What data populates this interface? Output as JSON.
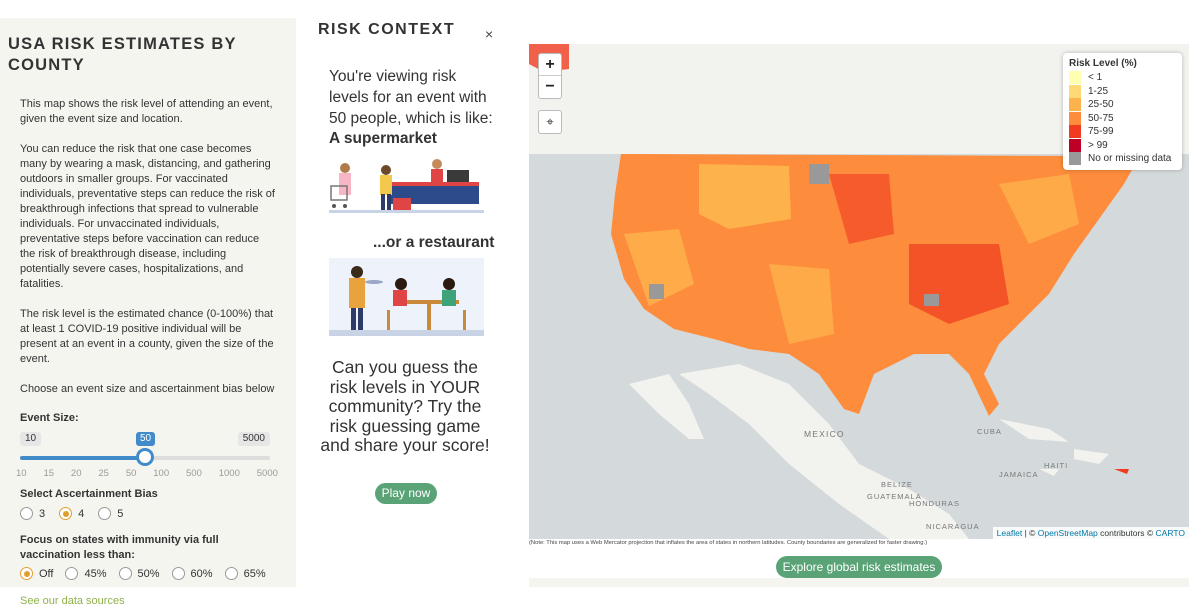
{
  "sidebar": {
    "title": "USA RISK ESTIMATES BY COUNTY",
    "p1": "This map shows the risk level of attending an event, given the event size and location.",
    "p2": "You can reduce the risk that one case becomes many by wearing a mask, distancing, and gathering outdoors in smaller groups. For vaccinated individuals, preventative steps can reduce the risk of breakthrough infections that spread to vulnerable individuals. For unvaccinated individuals, preventative steps before vaccination can reduce the risk of breakthrough disease, including potentially severe cases, hospitalizations, and fatalities.",
    "p3": "The risk level is the estimated chance (0-100%) that at least 1 COVID-19 positive individual will be present at an event in a county, given the size of the event.",
    "p4": "Choose an event size and ascertainment bias below",
    "event_size_label": "Event Size:",
    "slider": {
      "min_label": "10",
      "max_label": "5000",
      "current_label": "50",
      "value": 50,
      "ticks": [
        "10",
        "15",
        "20",
        "25",
        "50",
        "100",
        "500",
        "1000",
        "5000"
      ]
    },
    "bias_label": "Select Ascertainment Bias",
    "bias_options": [
      "3",
      "4",
      "5"
    ],
    "bias_selected": "4",
    "focus_label": "Focus on states with immunity via full vaccination less than:",
    "focus_options": [
      "Off",
      "45%",
      "50%",
      "60%",
      "65%"
    ],
    "focus_selected": "Off",
    "sources_link": "See our data sources"
  },
  "context": {
    "title": "RISK CONTEXT",
    "close": "×",
    "lead": "You're viewing risk levels for an event with 50 people, which is like:",
    "example1": "A supermarket",
    "example2": "...or a restaurant",
    "question": "Can you guess the risk levels in YOUR community? Try the risk guessing game and share your score!",
    "play_button": "Play now"
  },
  "map": {
    "zoom_in": "+",
    "zoom_out": "−",
    "legend_title": "Risk Level (%)",
    "legend": [
      {
        "label": "< 1",
        "color": "#ffffb2"
      },
      {
        "label": "1-25",
        "color": "#fed976"
      },
      {
        "label": "25-50",
        "color": "#feb24c"
      },
      {
        "label": "50-75",
        "color": "#fd8d3c"
      },
      {
        "label": "75-99",
        "color": "#f03b20"
      },
      {
        "label": "> 99",
        "color": "#bd0026"
      },
      {
        "label": "No or missing data",
        "color": "#999999"
      }
    ],
    "places": [
      "MEXICO",
      "CUBA",
      "HAITI",
      "JAMAICA",
      "BELIZE",
      "GUATEMALA",
      "HONDURAS",
      "NICARAGUA"
    ],
    "attribution": {
      "leaflet": "Leaflet",
      "sep": " | © ",
      "osm": "OpenStreetMap",
      "contrib": " contributors © ",
      "carto": "CARTO"
    },
    "note": "(Note: This map uses a Web Mercator projection that inflates the area of states in northern latitudes. County boundaries are generalized for faster drawing.)",
    "explore_button": "Explore global risk estimates"
  }
}
